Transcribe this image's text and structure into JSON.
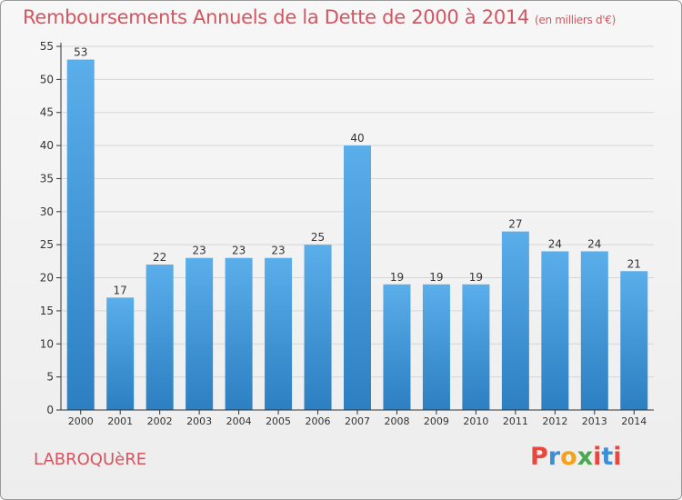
{
  "header": {
    "title": "Remboursements Annuels de la Dette de 2000 à 2014",
    "unit": "(en milliers d'€)"
  },
  "commune": "LABROQUèRE",
  "logo": {
    "text": "Proxiti",
    "letters": [
      "P",
      "r",
      "o",
      "x",
      "i",
      "t",
      "i"
    ],
    "colors": [
      "#e8473d",
      "#3a8fd6",
      "#f2a21c",
      "#4aa84f",
      "#e8473d",
      "#3a8fd6",
      "#e8473d"
    ]
  },
  "colors": {
    "accent": "#d45560",
    "bar_top": "#5aaeea",
    "bar_bottom": "#2c7fc1",
    "grid": "#d6d6d6",
    "axis": "#333333"
  },
  "chart_data": {
    "type": "bar",
    "categories": [
      "2000",
      "2001",
      "2002",
      "2003",
      "2004",
      "2005",
      "2006",
      "2007",
      "2008",
      "2009",
      "2010",
      "2011",
      "2012",
      "2013",
      "2014"
    ],
    "values": [
      53,
      17,
      22,
      23,
      23,
      23,
      25,
      40,
      19,
      19,
      19,
      27,
      24,
      24,
      21
    ],
    "title": "Remboursements Annuels de la Dette de 2000 à 2014",
    "ylim": [
      0,
      55
    ],
    "yticks": [
      0,
      5,
      10,
      15,
      20,
      25,
      30,
      35,
      40,
      45,
      50,
      55
    ],
    "grid": true,
    "data_labels": true
  }
}
